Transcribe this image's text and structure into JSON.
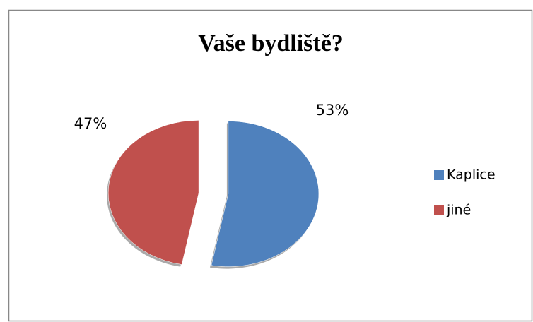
{
  "chart_data": {
    "type": "pie",
    "title": "Vaše bydliště?",
    "categories": [
      "Kaplice",
      "jiné"
    ],
    "values": [
      53,
      47
    ],
    "value_labels": [
      "53%",
      "47%"
    ],
    "colors": [
      "#4f81bd",
      "#c0504d"
    ],
    "legend": "right",
    "exploded": true
  }
}
